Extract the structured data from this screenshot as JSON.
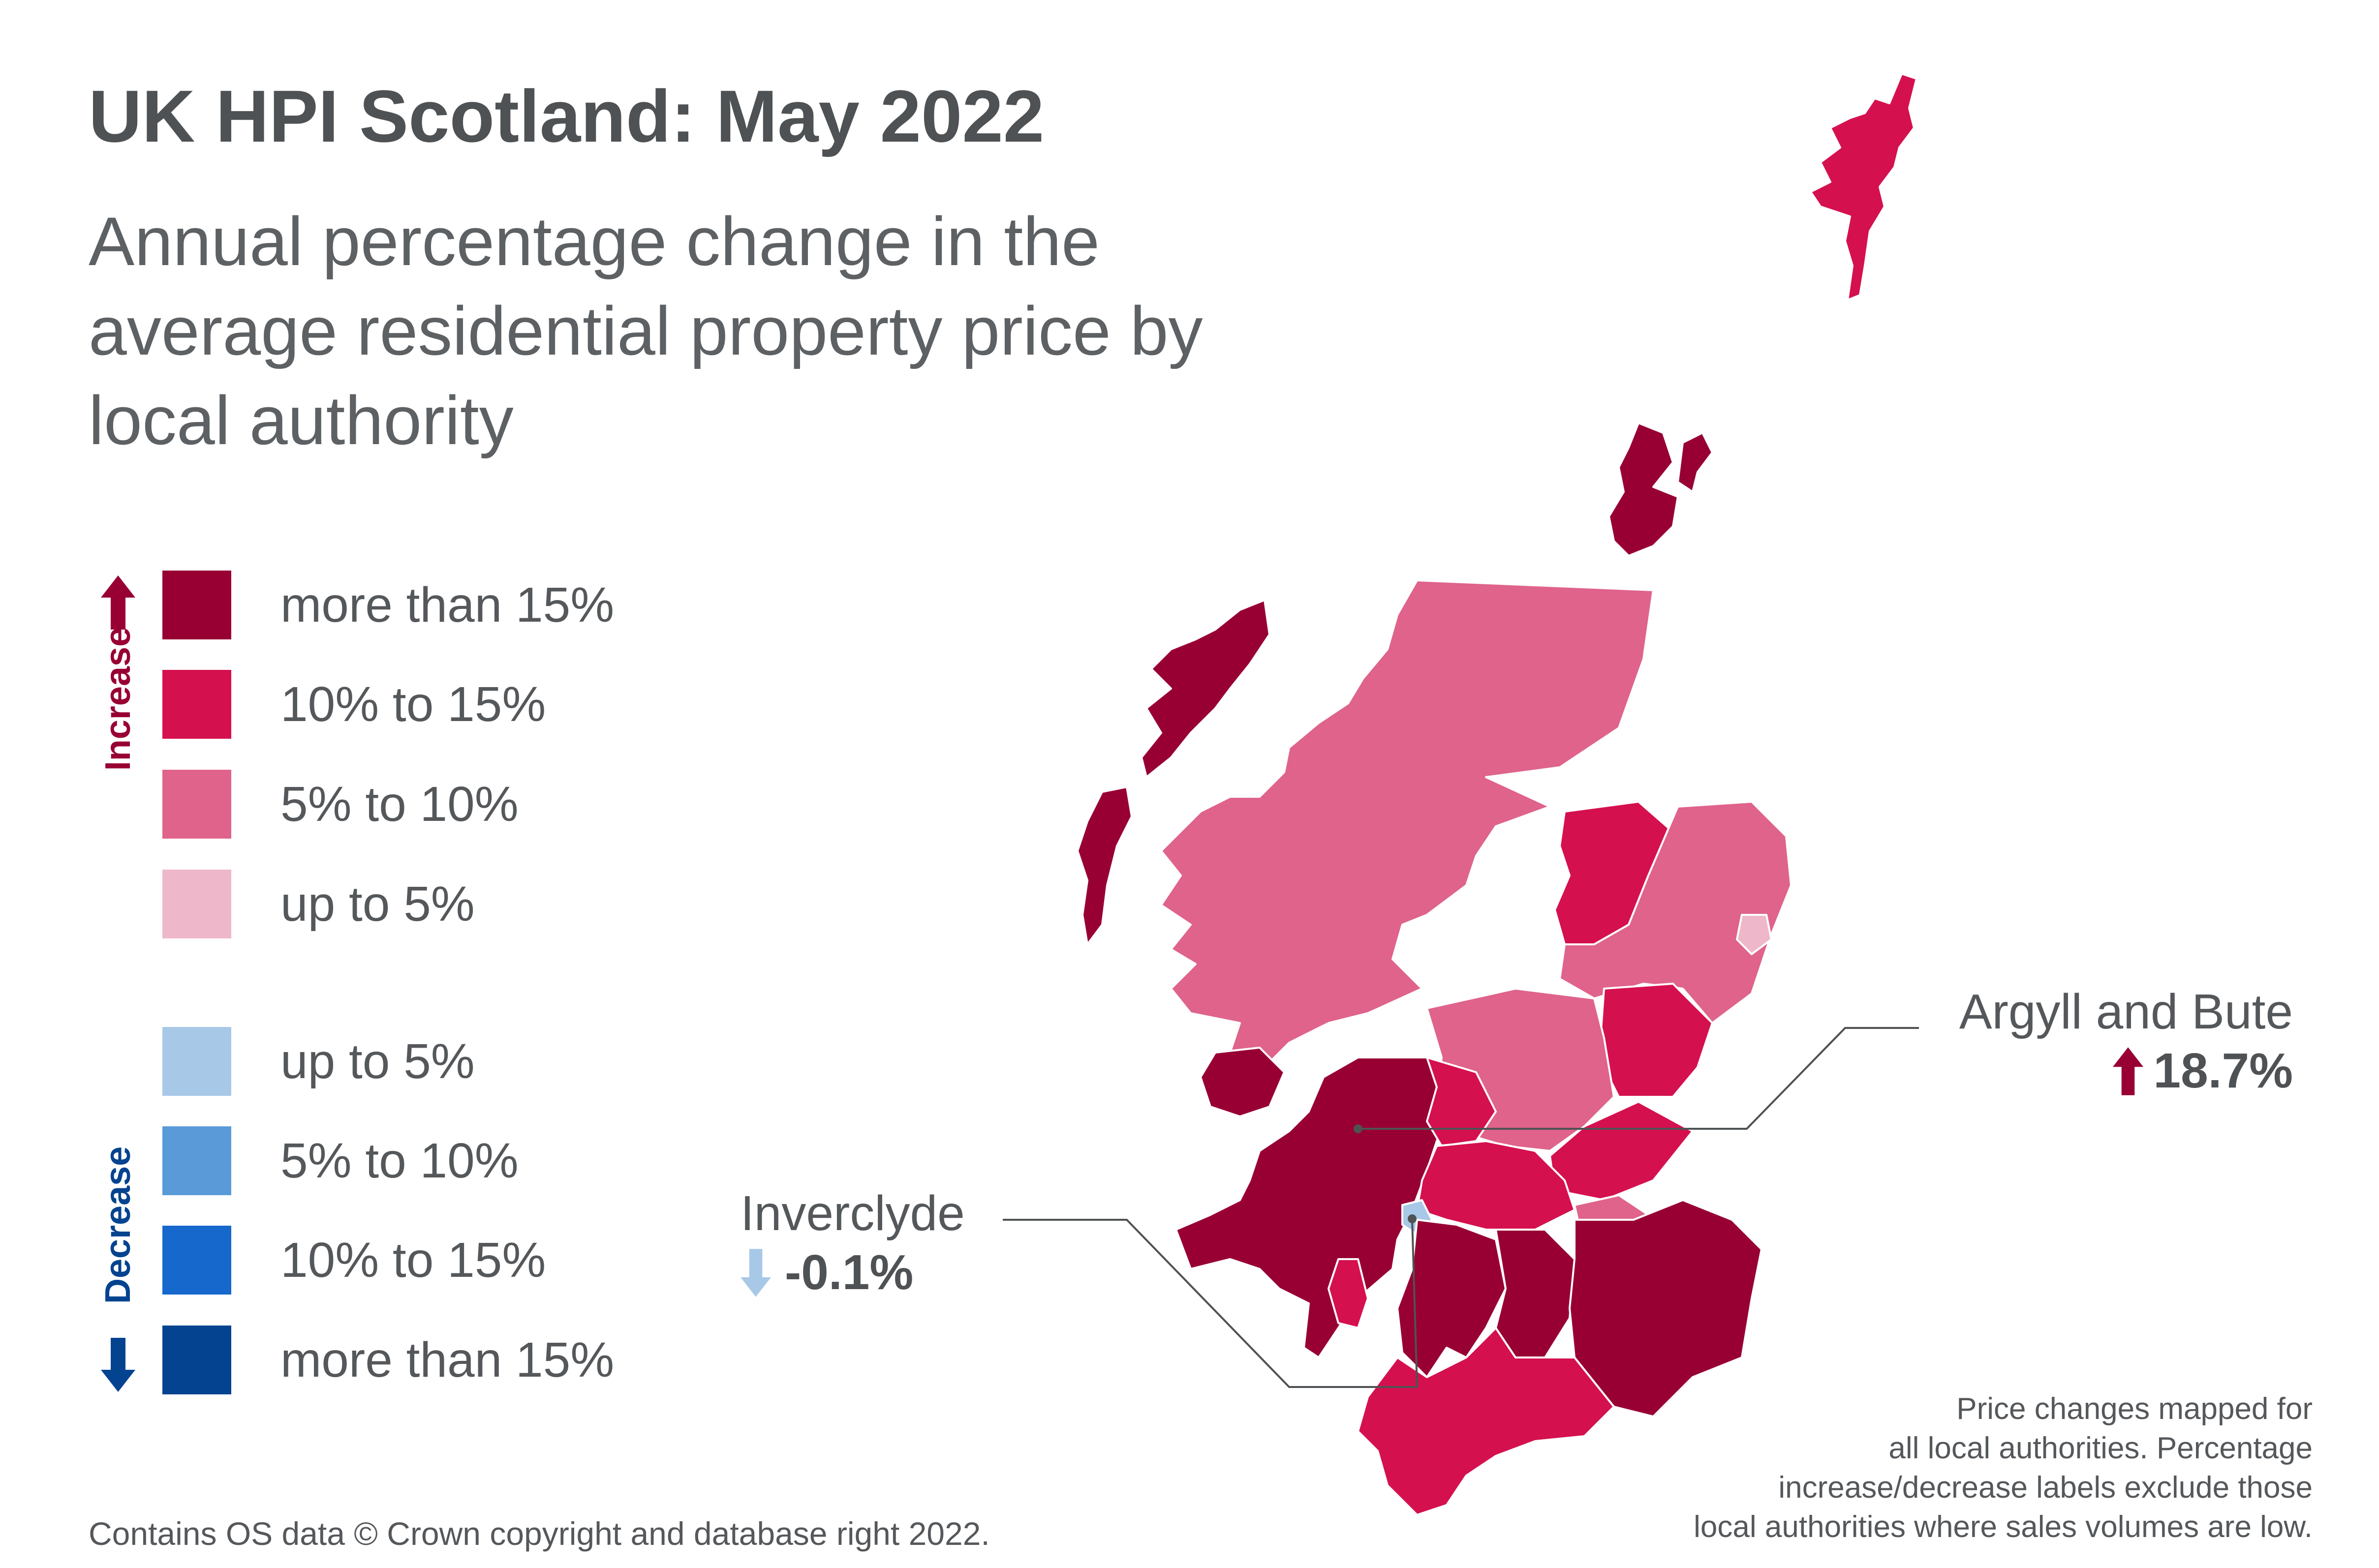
{
  "title": "UK HPI Scotland: May 2022",
  "subtitle": "Annual percentage change in the average residential property price by local authority",
  "legend": {
    "increase_label": "Increase",
    "decrease_label": "Decrease",
    "increase": [
      {
        "label": "more than 15%",
        "color": "#980033"
      },
      {
        "label": "10% to 15%",
        "color": "#d5104f"
      },
      {
        "label": "5% to 10%",
        "color": "#df638b"
      },
      {
        "label": "up to 5%",
        "color": "#eeb8ca"
      }
    ],
    "decrease": [
      {
        "label": "up to 5%",
        "color": "#a8c8e8"
      },
      {
        "label": "5% to 10%",
        "color": "#5a9ad8"
      },
      {
        "label": "10% to 15%",
        "color": "#1668cc"
      },
      {
        "label": "more than 15%",
        "color": "#04438f"
      }
    ]
  },
  "callouts": {
    "argyll": {
      "name": "Argyll and Bute",
      "value": "18.7%",
      "direction": "up",
      "color": "#980033"
    },
    "inverclyde": {
      "name": "Inverclyde",
      "value": "-0.1%",
      "direction": "down",
      "color": "#a8c8e8"
    }
  },
  "icons": {
    "up": "arrow-up-icon",
    "down": "arrow-down-icon"
  },
  "note": "Price changes mapped for all local authorities. Percentage increase/decrease labels exclude those local authorities where sales volumes are low.",
  "note_lines": [
    "Price changes mapped for",
    "all local authorities. Percentage",
    "increase/decrease labels exclude those",
    "local authorities where sales volumes are low."
  ],
  "copyright": "Contains OS data © Crown copyright and database right 2022."
}
